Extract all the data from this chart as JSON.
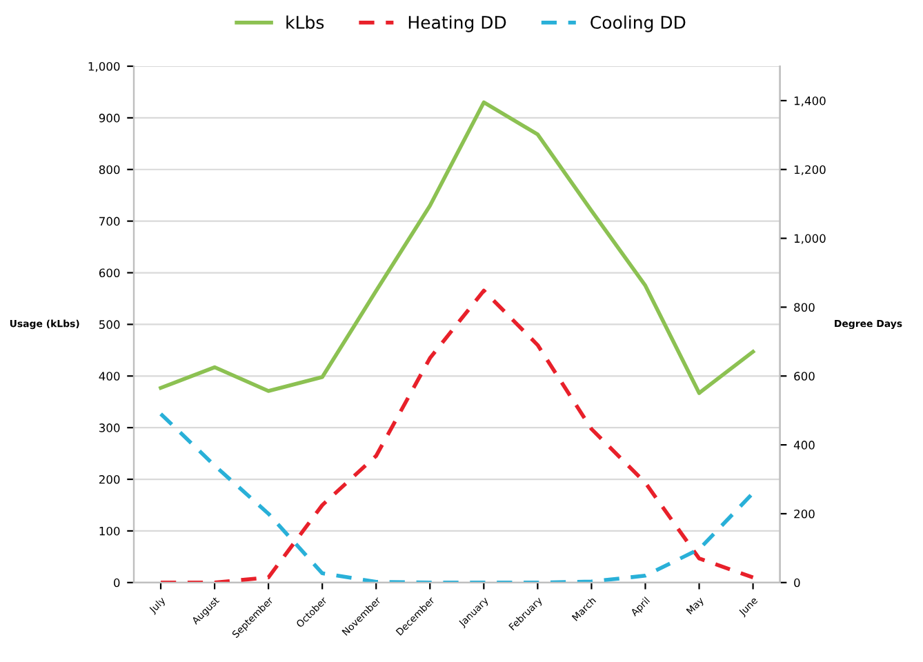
{
  "chart_data": {
    "type": "line",
    "ylabel": "Usage (kLbs)",
    "y2label": "Degree Days",
    "categories": [
      "July",
      "August",
      "September",
      "October",
      "November",
      "December",
      "January",
      "February",
      "March",
      "April",
      "May",
      "June"
    ],
    "series": [
      {
        "name": "kLbs",
        "color": "#8cc152",
        "line_style": "solid",
        "values": [
          377,
          417,
          371,
          398,
          565,
          730,
          930,
          868,
          720,
          575,
          367,
          447
        ]
      },
      {
        "name": "Heating DD",
        "color": "#e8202a",
        "line_style": "dashed",
        "axis": "y2",
        "values": [
          0,
          0,
          15,
          225,
          368,
          652,
          848,
          690,
          446,
          290,
          70,
          15
        ]
      },
      {
        "name": "Cooling DD",
        "color": "#29b0d8",
        "line_style": "dashed",
        "axis": "y2",
        "values": [
          490,
          340,
          200,
          27,
          2,
          0,
          0,
          0,
          3,
          20,
          97,
          260
        ]
      }
    ],
    "ylim": [
      0,
      1000
    ],
    "yticks": [
      0,
      {
        "value": 100,
        "label": "100"
      },
      200,
      300,
      400,
      500,
      600,
      700,
      800,
      900,
      {
        "value": 1000,
        "label": "1,000"
      }
    ],
    "y2lim": [
      0,
      1500
    ],
    "y2ticks": [
      0,
      200,
      400,
      600,
      800,
      {
        "value": 1000,
        "label": "1,000"
      },
      {
        "value": 1200,
        "label": "1,200"
      },
      {
        "value": 1400,
        "label": "1,400"
      }
    ],
    "grid": "y",
    "legend": "top",
    "marker": "none"
  }
}
